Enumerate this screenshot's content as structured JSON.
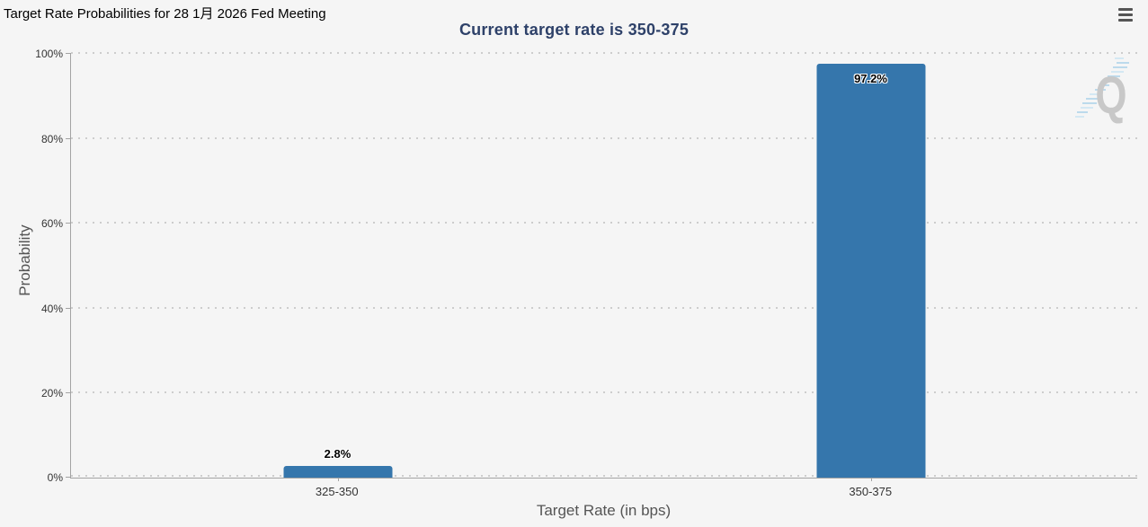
{
  "header": {
    "title": "Target Rate Probabilities for 28 1月 2026 Fed Meeting"
  },
  "menu": {
    "tooltip": "Chart context menu"
  },
  "chart_data": {
    "type": "bar",
    "title": "Target Rate Probabilities for 28 1月 2026 Fed Meeting",
    "subtitle": "Current target rate is 350-375",
    "categories": [
      "325-350",
      "350-375"
    ],
    "values": [
      2.8,
      97.2
    ],
    "value_labels": [
      "2.8%",
      "97.2%"
    ],
    "xlabel": "Target Rate (in bps)",
    "ylabel": "Probability",
    "ylim": [
      0,
      100
    ],
    "y_ticks": [
      "0%",
      "20%",
      "40%",
      "60%",
      "80%",
      "100%"
    ],
    "grid": "dotted horizontal gridlines at 20% intervals",
    "legend": "none",
    "bar_color": "#3576ac",
    "background_color": "#f5f5f5",
    "subtitle_color": "#2e4169"
  },
  "watermark": {
    "letter": "Q"
  }
}
